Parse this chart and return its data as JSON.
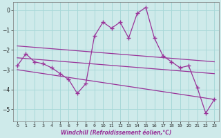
{
  "xlabel": "Windchill (Refroidissement éolien,°C)",
  "background_color": "#ceeaea",
  "grid_color": "#a8d8d8",
  "line_color": "#993399",
  "x_ticks": [
    0,
    1,
    2,
    3,
    4,
    5,
    6,
    7,
    8,
    9,
    10,
    11,
    12,
    13,
    14,
    15,
    16,
    17,
    18,
    19,
    20,
    21,
    22,
    23
  ],
  "y_ticks": [
    0,
    -1,
    -2,
    -3,
    -4,
    -5
  ],
  "xlim": [
    -0.5,
    23.5
  ],
  "ylim": [
    -5.6,
    0.4
  ],
  "series_main": {
    "x": [
      0,
      1,
      2,
      3,
      4,
      5,
      6,
      7,
      8,
      9,
      10,
      11,
      12,
      13,
      14,
      15,
      16,
      17,
      18,
      19,
      20,
      21,
      22,
      23
    ],
    "y": [
      -2.8,
      -2.2,
      -2.6,
      -2.7,
      -2.9,
      -3.2,
      -3.5,
      -4.2,
      -3.7,
      -1.3,
      -0.6,
      -0.9,
      -0.6,
      -1.4,
      -0.15,
      0.15,
      -1.4,
      -2.3,
      -2.6,
      -2.9,
      -2.8,
      -3.9,
      -5.2,
      -4.5
    ]
  },
  "series_high": {
    "x": [
      0,
      23
    ],
    "y": [
      -1.8,
      -2.6
    ]
  },
  "series_mid": {
    "x": [
      0,
      23
    ],
    "y": [
      -2.4,
      -3.2
    ]
  },
  "series_low": {
    "x": [
      0,
      23
    ],
    "y": [
      -3.0,
      -4.5
    ]
  }
}
